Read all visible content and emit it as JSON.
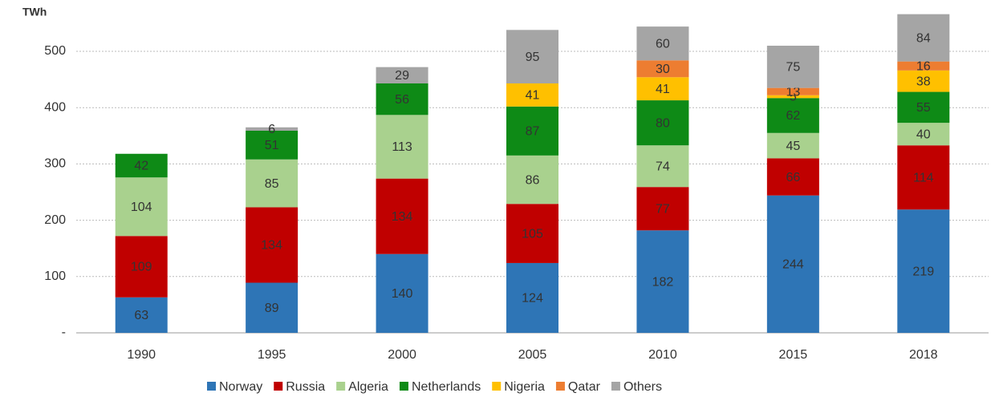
{
  "chart_data": {
    "type": "stacked_bar",
    "y_label": "TWh",
    "categories": [
      "1990",
      "1995",
      "2000",
      "2005",
      "2010",
      "2015",
      "2018"
    ],
    "series": [
      {
        "name": "Norway",
        "color": "#2e75b6",
        "values": [
          63,
          89,
          140,
          124,
          182,
          244,
          219
        ]
      },
      {
        "name": "Russia",
        "color": "#c00000",
        "values": [
          109,
          134,
          134,
          105,
          77,
          66,
          114
        ]
      },
      {
        "name": "Algeria",
        "color": "#a9d18e",
        "values": [
          104,
          85,
          113,
          86,
          74,
          45,
          40
        ]
      },
      {
        "name": "Netherlands",
        "color": "#0e8a16",
        "values": [
          42,
          51,
          56,
          87,
          80,
          62,
          55
        ]
      },
      {
        "name": "Nigeria",
        "color": "#ffc000",
        "values": [
          null,
          null,
          null,
          41,
          41,
          5,
          38
        ]
      },
      {
        "name": "Qatar",
        "color": "#ed7d31",
        "values": [
          null,
          null,
          null,
          null,
          30,
          13,
          16
        ]
      },
      {
        "name": "Others",
        "color": "#a5a5a5",
        "values": [
          null,
          6,
          29,
          95,
          60,
          75,
          84
        ]
      }
    ],
    "ylim": [
      0,
      580
    ],
    "yticks": [
      {
        "value": 0,
        "label": "-"
      },
      100,
      200,
      300,
      400,
      500
    ],
    "grid": true,
    "legend": "bottom"
  }
}
